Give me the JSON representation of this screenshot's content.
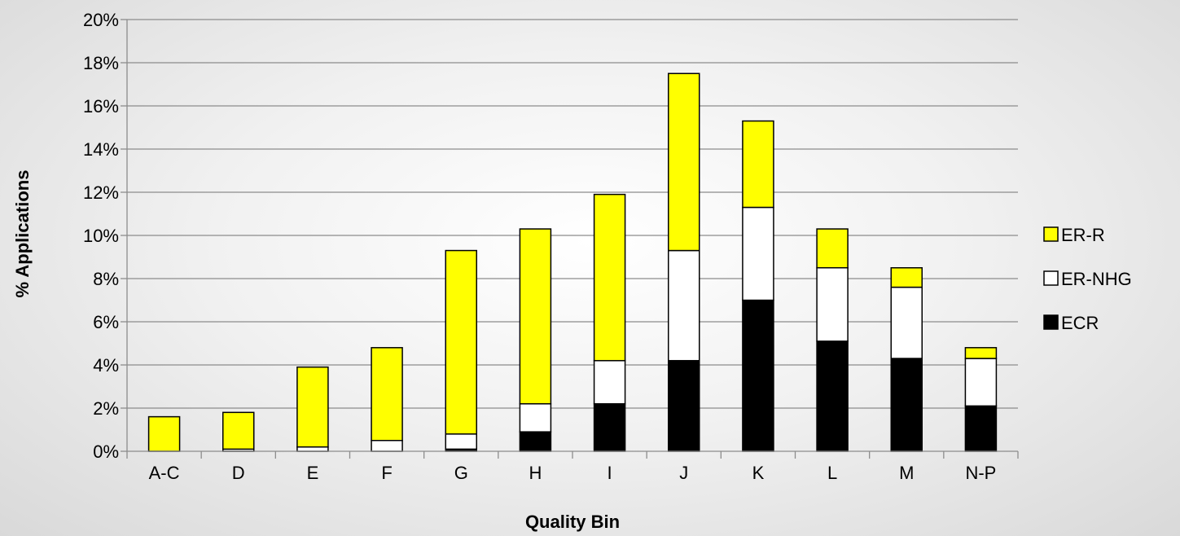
{
  "chart_data": {
    "type": "bar",
    "stacked": true,
    "title": "",
    "xlabel": "Quality Bin",
    "ylabel": "% Applications",
    "categories": [
      "A-C",
      "D",
      "E",
      "F",
      "G",
      "H",
      "I",
      "J",
      "K",
      "L",
      "M",
      "N-P"
    ],
    "series": [
      {
        "name": "ECR",
        "color": "#000000",
        "values": [
          0.0,
          0.0,
          0.0,
          0.0,
          0.1,
          0.9,
          2.2,
          4.2,
          7.0,
          5.1,
          4.3,
          2.1
        ]
      },
      {
        "name": "ER-NHG",
        "color": "#ffffff",
        "values": [
          0.0,
          0.1,
          0.2,
          0.5,
          0.7,
          1.3,
          2.0,
          5.1,
          4.3,
          3.4,
          3.3,
          2.2
        ]
      },
      {
        "name": "ER-R",
        "color": "#ffff00",
        "values": [
          1.6,
          1.7,
          3.7,
          4.3,
          8.5,
          8.1,
          7.7,
          8.2,
          4.0,
          1.8,
          0.9,
          0.5
        ]
      }
    ],
    "ylim": [
      0,
      20
    ],
    "yticks": [
      "0%",
      "2%",
      "4%",
      "6%",
      "8%",
      "10%",
      "12%",
      "14%",
      "16%",
      "18%",
      "20%"
    ],
    "grid": true,
    "legend_position": "right",
    "legend_order": [
      "ER-R",
      "ER-NHG",
      "ECR"
    ]
  }
}
